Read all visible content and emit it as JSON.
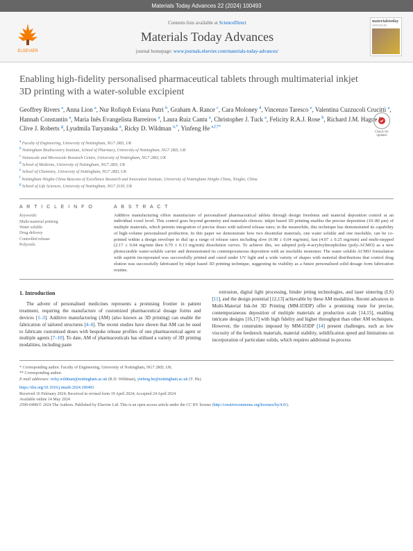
{
  "header": {
    "citation": "Materials Today Advances 22 (2024) 100493"
  },
  "banner": {
    "elsevier": "ELSEVIER",
    "contents_prefix": "Contents lists available at ",
    "contents_link": "ScienceDirect",
    "journal_title": "Materials Today Advances",
    "homepage_prefix": "journal homepage: ",
    "homepage_url": "www.journals.elsevier.com/materials-today-advances/",
    "cover_title": "materialstoday",
    "cover_sub": "ADVANCES"
  },
  "article": {
    "title": "Enabling high-fidelity personalised pharmaceutical tablets through multimaterial inkjet 3D printing with a water-soluble excipient",
    "check_updates": "Check for updates"
  },
  "authors": {
    "list": "Geoffrey Rivers <sup>a</sup>, Anna Lion <sup>a</sup>, Nur Rofiqoh Eviana Putri <sup>b</sup>, Graham A. Rance <sup>c</sup>, Cara Moloney <sup>d</sup>, Vincenzo Taresco <sup>e</sup>, Valentina Cuzzucoli Crucitti <sup>a</sup>, Hannah Constantin <sup>a</sup>, Maria Inês Evangelista Barreiros <sup>a</sup>, Laura Ruiz Cantu <sup>a</sup>, Christopher J. Tuck <sup>a</sup>, Felicity R.A.J. Rose <sup>b</sup>, Richard J.M. Hague <sup>a</sup>, Clive J. Roberts <sup>g</sup>, Lyudmila Turyanska <sup>a</sup>, Ricky D. Wildman <sup>a,*</sup>, Yinfeng He <sup>a,f,**</sup>"
  },
  "affiliations": {
    "a": "Faculty of Engineering, University of Nottingham, NG7 2RD, UK",
    "b": "Nottingham Biodiscovery Institute, School of Pharmacy, University of Nottingham, NG7 2RD, UK",
    "c": "Nanoscale and Microscale Research Centre, University of Nottingham, NG7 2RD, UK",
    "d": "School of Medicine, University of Nottingham, NG7 2RD, UK",
    "e": "School of Chemistry, University of Nottingham, NG7 2RD, UK",
    "f": "Nottingham Ningbo China Beacons of Excellence Research and Innovation Institute, University of Nottingham Ningbo China, Ningbo, China",
    "g": "School of Life Sciences, University of Nottingham, NG7 2UH, UK"
  },
  "info": {
    "heading": "A R T I C L E  I N F O",
    "keywords_label": "Keywords:",
    "keywords": "Multi-material printing\nWater soluble\nDrug delivery\nControlled release\nPolyoxils"
  },
  "abstract": {
    "heading": "A B S T R A C T",
    "text": "Additive manufacturing offers manufacture of personalised pharmaceutical tablets through design freedoms and material deposition control at an individual voxel level. This control goes beyond geometry and materials choices: inkjet based 3D printing enables the precise deposition (10–80 μm) of multiple materials, which permits integration of precise doses with tailored release rates; in the meanwhile, this technique has demonstrated its capability of high-volume personalised production. In this paper we demonstrate how two dissimilar materials, one water soluble and one insoluble, can be co-printed within a design envelope to dial up a range of release rates including slow (0.98 ± 0.04 mg/min), fast (4.07 ± 0.25 mg/min) and multi-stepped (2.17 ± 0.04 mg/min then 0.70 ± 0.13 mg/min) dissolution curves. To achieve this, we adopted poly-4-acryloylmorpholine (poly-ACMO) as a new photocurable water-soluble carrier and demonstrated its contemporaneous deposition with an insoluble monomer. The water soluble ACMO formulation with aspirin incorporated was successfully printed and cured under UV light and a wide variety of shapes with material distributions that control drug elution was successfully fabricated by inkjet based 3D printing technique, suggesting its viability as a future personalised solid dosage form fabrication routine."
  },
  "body": {
    "section_num": "1.",
    "section_title": "Introduction",
    "col1": "The advent of personalised medicines represents a promising frontier in patient treatment, requiring the manufacture of customized pharmaceutical dosage forms and devices [1–3]. Additive manufacturing (AM) (also known as 3D printing) can enable the fabrication of tailored structures [4–6]. The recent studies have shown that AM can be used to fabricate customised doses with bespoke release profiles of one pharmaceutical agent or multiple agents [7–10]. To date, AM of pharmaceuticals has utilised a variety of 3D printing modalities, including paste",
    "col2": "extrusion, digital light processing, binder jetting technologies, and laser sintering (LS) [11], and the design potential [12,13] achievable by these AM modalities. Recent advances in Multi-Material Ink-Jet 3D Printing (MM-IJ3DP) offer a promising route for precise, contemporaneous deposition of multiple materials at production scale [14,15], enabling intricate designs [16,17] with high fidelity and higher throughput than other AM techniques. However, the constraints imposed by MM-IJ3DP [14] present challenges, such as low viscosity of the feedstock materials, material stability, solidification speed and limitations on incorporation of particulate solids, which requires additional in-process"
  },
  "footer": {
    "corr1": "* Corresponding author. Faculty of Engineering, University of Nottingham, NG7 2RD, UK.",
    "corr2": "** Corresponding author.",
    "emails_label": "E-mail addresses: ",
    "email1": "ricky.wildman@nottingham.ac.uk",
    "email1_name": " (R.D. Wildman), ",
    "email2": "yinfeng.he@nottingham.ac.uk",
    "email2_name": " (Y. He).",
    "doi": "https://doi.org/10.1016/j.mtadv.2024.100493",
    "received": "Received 16 February 2024; Received in revised form 19 April 2024; Accepted 24 April 2024",
    "available": "Available online 14 May 2024",
    "copyright": "2590-0498/© 2024 The Authors. Published by Elsevier Ltd. This is an open access article under the CC BY license (",
    "cc_url": "http://creativecommons.org/licenses/by/4.0/",
    "copyright_end": ")."
  }
}
